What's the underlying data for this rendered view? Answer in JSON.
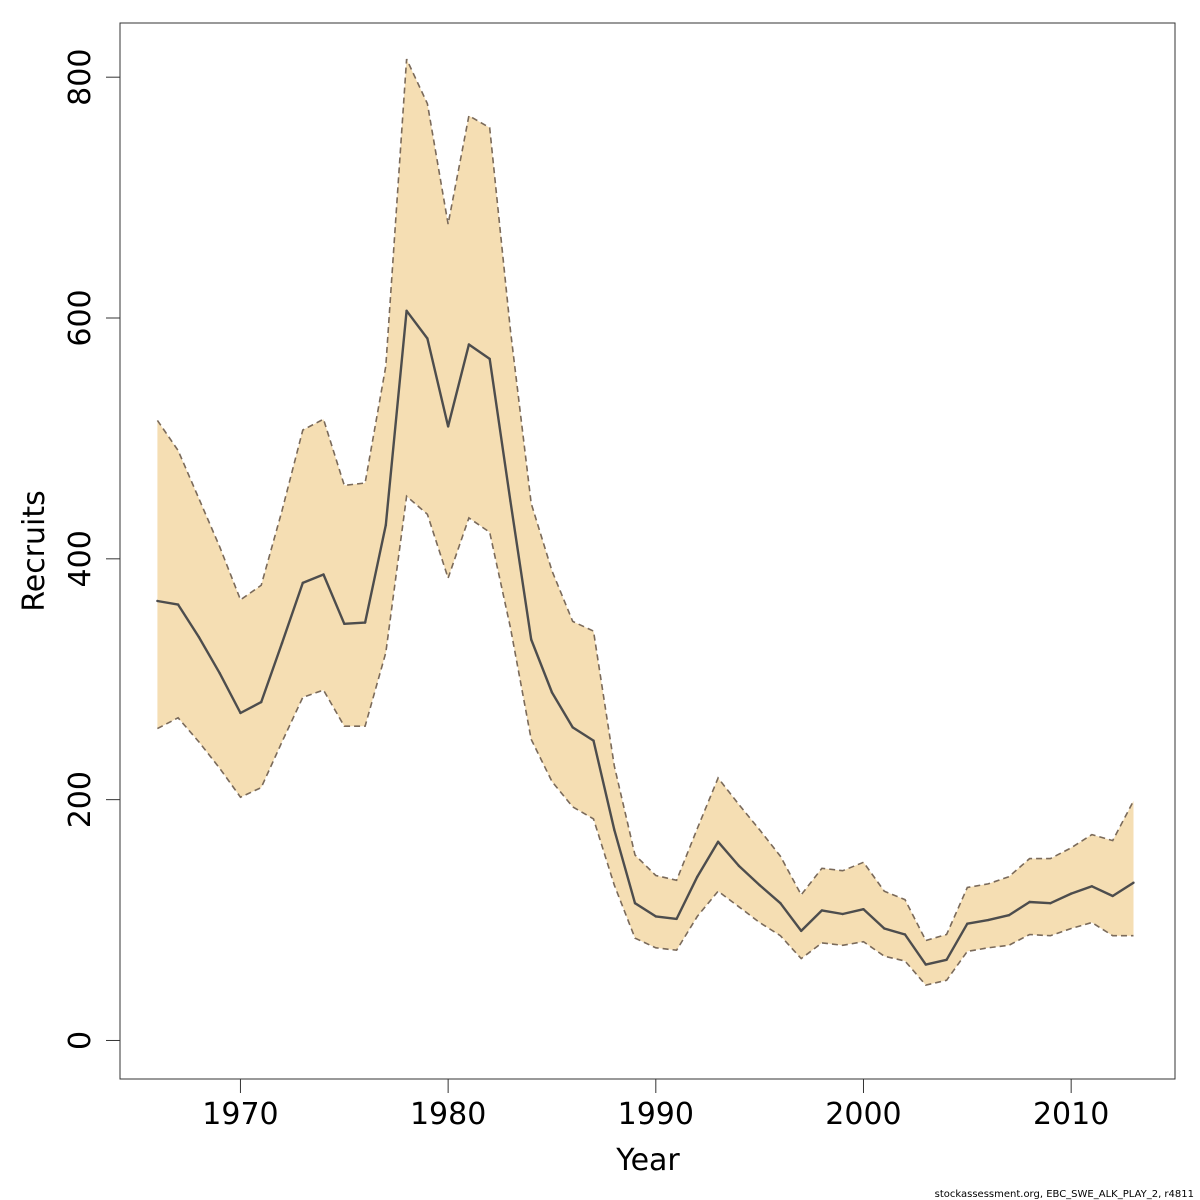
{
  "chart_data": {
    "type": "area",
    "xlabel": "Year",
    "ylabel": "Recruits",
    "xlim": [
      1964.2,
      2015.0
    ],
    "ylim": [
      -32,
      845
    ],
    "x_ticks": [
      1970,
      1980,
      1990,
      2000,
      2010
    ],
    "y_ticks": [
      0,
      200,
      400,
      600,
      800
    ],
    "x": [
      1966,
      1967,
      1968,
      1969,
      1970,
      1971,
      1972,
      1973,
      1974,
      1975,
      1976,
      1977,
      1978,
      1979,
      1980,
      1981,
      1982,
      1983,
      1984,
      1985,
      1986,
      1987,
      1988,
      1989,
      1990,
      1991,
      1992,
      1993,
      1994,
      1995,
      1996,
      1997,
      1998,
      1999,
      2000,
      2001,
      2002,
      2003,
      2004,
      2005,
      2006,
      2007,
      2008,
      2009,
      2010,
      2011,
      2012,
      2013
    ],
    "series": [
      {
        "role": "estimate",
        "values": [
          365,
          362,
          335,
          305,
          272,
          281,
          330,
          380,
          387,
          346,
          347,
          428,
          606,
          583,
          510,
          578,
          566,
          448,
          333,
          289,
          260,
          249,
          175,
          114,
          103,
          101,
          136,
          165,
          145,
          129,
          114,
          91,
          108,
          105,
          109,
          93,
          88,
          63,
          67,
          97,
          100,
          104,
          115,
          114,
          122,
          128,
          120,
          131
        ]
      },
      {
        "role": "upper",
        "values": [
          515,
          490,
          450,
          410,
          366,
          378,
          440,
          507,
          516,
          461,
          463,
          560,
          815,
          778,
          678,
          768,
          758,
          590,
          446,
          390,
          348,
          340,
          228,
          154,
          137,
          133,
          176,
          218,
          196,
          175,
          153,
          121,
          143,
          141,
          148,
          124,
          117,
          83,
          88,
          127,
          130,
          136,
          151,
          151,
          160,
          171,
          166,
          199
        ]
      },
      {
        "role": "lower",
        "values": [
          259,
          268,
          248,
          226,
          202,
          210,
          248,
          285,
          291,
          261,
          261,
          322,
          452,
          437,
          384,
          434,
          422,
          343,
          250,
          215,
          194,
          184,
          129,
          85,
          77,
          75,
          103,
          124,
          111,
          98,
          87,
          68,
          81,
          79,
          82,
          70,
          66,
          46,
          50,
          74,
          77,
          79,
          88,
          87,
          93,
          98,
          87,
          87
        ]
      }
    ],
    "colors": {
      "band": "#f5deb3",
      "band_edge": "#7a6a5a",
      "line": "#4d4d4d"
    },
    "grid": false,
    "legend": "none"
  },
  "footer_text": "stockassessment.org, EBC_SWE_ALK_PLAY_2, r4811"
}
